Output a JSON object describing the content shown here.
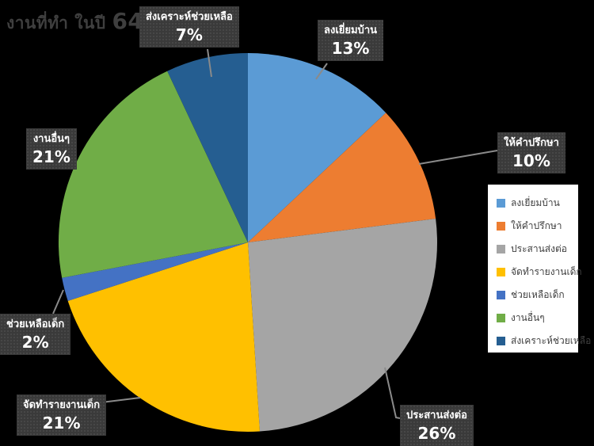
{
  "title": {
    "prefix": "งานที่ทำ ในปี ",
    "year": "64"
  },
  "chart_data": {
    "type": "pie",
    "title": "งานที่ทำ ในปี 64",
    "categories": [
      "ลงเยี่ยมบ้าน",
      "ให้คำปรึกษา",
      "ประสานส่งต่อ",
      "จัดทำรายงานเด็ก",
      "ช่วยเหลือเด็ก",
      "งานอื่นๆ",
      "ส่งเคราะห์ช่วยเหลือ"
    ],
    "values": [
      13,
      10,
      26,
      21,
      2,
      21,
      7
    ],
    "unit": "%",
    "colors": [
      "#5B9BD5",
      "#ED7D31",
      "#A5A5A5",
      "#FFC000",
      "#4472C4",
      "#70AD47",
      "#255E91"
    ],
    "start_angle_deg": 0,
    "direction": "clockwise",
    "legend_position": "right",
    "background": "#000000",
    "label_box_color": "#3a3a3a",
    "label_text_color": "#ffffff",
    "leader_line_color": "#8a8a8a",
    "title_color": "#3f3f3f"
  },
  "callouts": [
    {
      "label": "ลงเยี่ยมบ้าน",
      "pct": "13%"
    },
    {
      "label": "ให้คำปรึกษา",
      "pct": "10%"
    },
    {
      "label": "ประสานส่งต่อ",
      "pct": "26%"
    },
    {
      "label": "จัดทำรายงานเด็ก",
      "pct": "21%"
    },
    {
      "label": "ช่วยเหลือเด็ก",
      "pct": "2%"
    },
    {
      "label": "งานอื่นๆ",
      "pct": "21%"
    },
    {
      "label": "ส่งเคราะห์ช่วยเหลือ",
      "pct": "7%"
    }
  ]
}
